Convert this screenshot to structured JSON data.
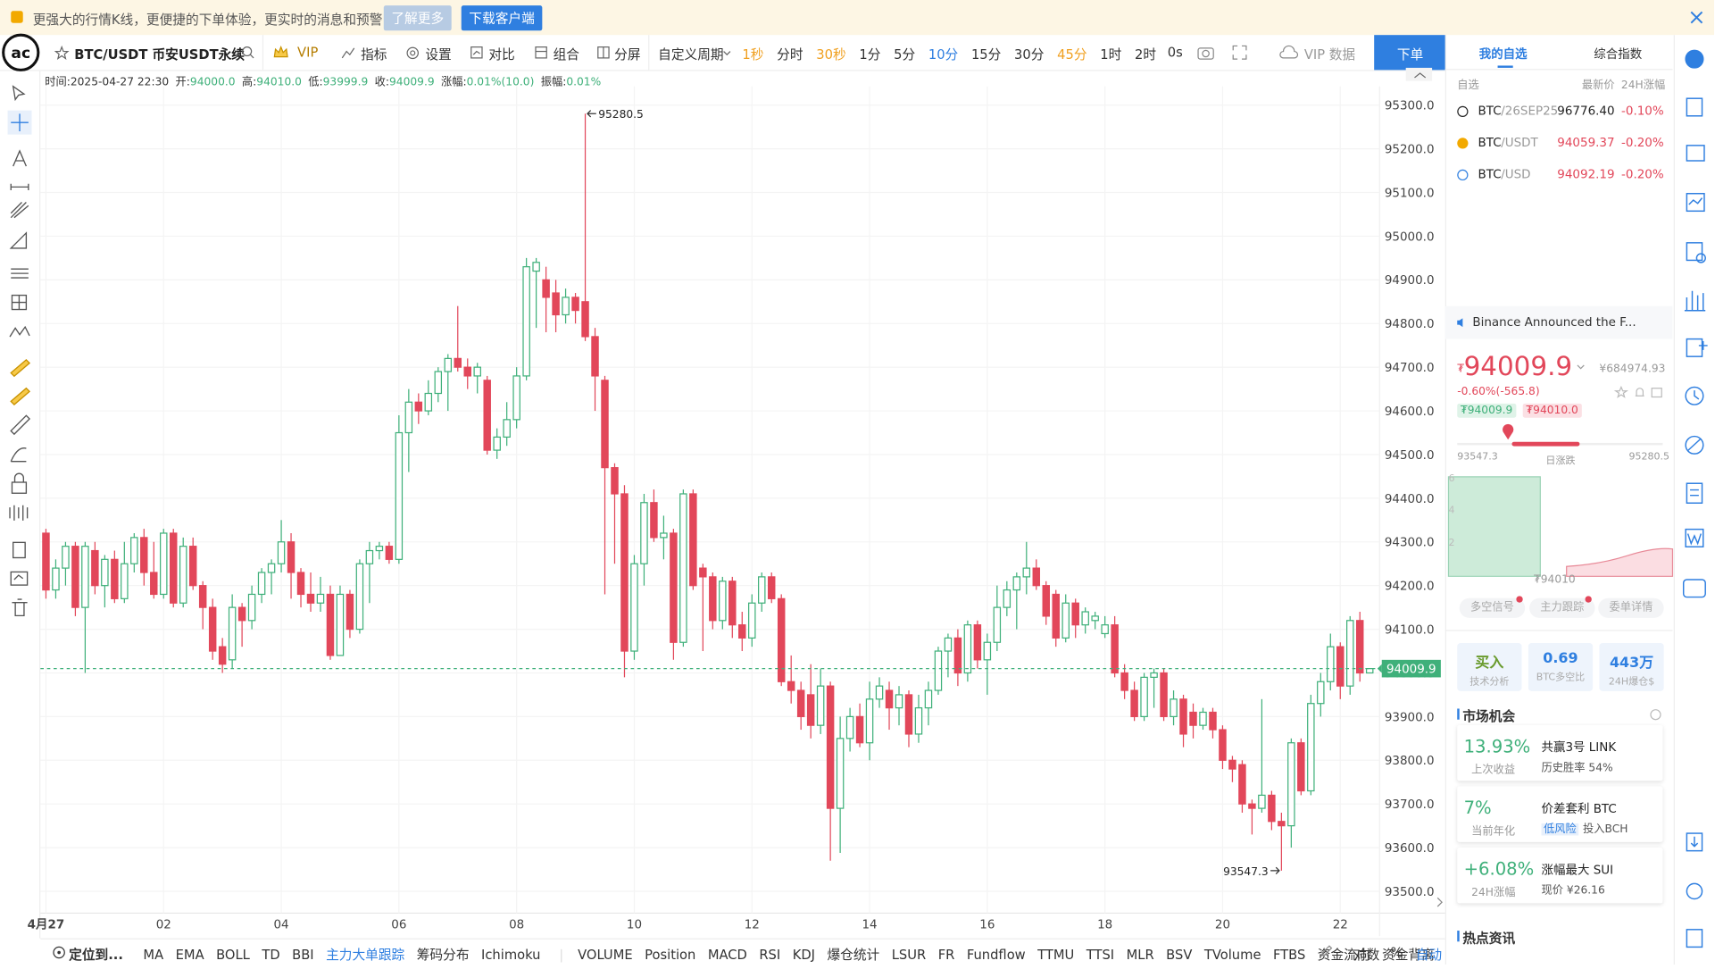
{
  "banner": {
    "text": "更强大的行情K线，更便捷的下单体验，更实时的消息和预警",
    "learn_more": "了解更多",
    "download": "下载客户端"
  },
  "toolbar": {
    "symbol": "BTC/USDT 币安USDT永续",
    "vip": "VIP",
    "indicators": "指标",
    "settings": "设置",
    "compare": "对比",
    "combo": "组合",
    "split": "分屏",
    "custom_period": "自定义周期",
    "periods": [
      {
        "label": "1秒",
        "style": "vip"
      },
      {
        "label": "分时",
        "style": "normal"
      },
      {
        "label": "30秒",
        "style": "vip"
      },
      {
        "label": "1分",
        "style": "normal"
      },
      {
        "label": "5分",
        "style": "normal"
      },
      {
        "label": "10分",
        "style": "active"
      },
      {
        "label": "15分",
        "style": "normal"
      },
      {
        "label": "30分",
        "style": "normal"
      },
      {
        "label": "45分",
        "style": "vip"
      },
      {
        "label": "1时",
        "style": "normal"
      },
      {
        "label": "2时",
        "style": "normal"
      }
    ],
    "countdown": "0s",
    "vip_data": "VIP 数据",
    "order": "下单"
  },
  "ohlc_bar": [
    {
      "label": "时间:",
      "value": "2025-04-27 22:30"
    },
    {
      "label": "开:",
      "value": "94000.0"
    },
    {
      "label": "高:",
      "value": "94010.0"
    },
    {
      "label": "低:",
      "value": "93999.9"
    },
    {
      "label": "收:",
      "value": "94009.9"
    },
    {
      "label": "涨幅:",
      "value": "0.01%(10.0)"
    },
    {
      "label": "振幅:",
      "value": "0.01%"
    }
  ],
  "chart_data": {
    "type": "candlestick",
    "up_color": "#3fb07a",
    "down_color": "#e2475a",
    "up_hollow": true,
    "grid": true,
    "xlim": [
      -0.56,
      136.01
    ],
    "ylim": [
      93450,
      95378
    ],
    "xticks": [
      {
        "value": 0,
        "label": "4月27"
      },
      {
        "value": 12,
        "label": "02"
      },
      {
        "value": 24,
        "label": "04"
      },
      {
        "value": 36,
        "label": "06"
      },
      {
        "value": 48,
        "label": "08"
      },
      {
        "value": 60,
        "label": "10"
      },
      {
        "value": 72,
        "label": "12"
      },
      {
        "value": 84,
        "label": "14"
      },
      {
        "value": 96,
        "label": "16"
      },
      {
        "value": 108,
        "label": "18"
      },
      {
        "value": 120,
        "label": "20"
      },
      {
        "value": 132,
        "label": "22"
      }
    ],
    "yticks": [
      {
        "value": 95300,
        "label": "95300.0"
      },
      {
        "value": 95200,
        "label": "95200.0"
      },
      {
        "value": 95100,
        "label": "95100.0"
      },
      {
        "value": 95000,
        "label": "95000.0"
      },
      {
        "value": 94900,
        "label": "94900.0"
      },
      {
        "value": 94800,
        "label": "94800.0"
      },
      {
        "value": 94700,
        "label": "94700.0"
      },
      {
        "value": 94600,
        "label": "94600.0"
      },
      {
        "value": 94500,
        "label": "94500.0"
      },
      {
        "value": 94400,
        "label": "94400.0"
      },
      {
        "value": 94300,
        "label": "94300.0"
      },
      {
        "value": 94200,
        "label": "94200.0"
      },
      {
        "value": 94100,
        "label": "94100.0"
      },
      {
        "value": 94000,
        "label": "94000.0"
      },
      {
        "value": 93900,
        "label": "93900.0"
      },
      {
        "value": 93800,
        "label": "93800.0"
      },
      {
        "value": 93700,
        "label": "93700.0"
      },
      {
        "value": 93600,
        "label": "93600.0"
      },
      {
        "value": 93500,
        "label": "93500.0"
      }
    ],
    "candles": [
      [
        94320,
        94330,
        94170,
        94190
      ],
      [
        94190,
        94260,
        94170,
        94240
      ],
      [
        94240,
        94300,
        94200,
        94290
      ],
      [
        94290,
        94300,
        94130,
        94150
      ],
      [
        94150,
        94300,
        94000,
        94290
      ],
      [
        94280,
        94300,
        94180,
        94200
      ],
      [
        94200,
        94270,
        94150,
        94260
      ],
      [
        94260,
        94280,
        94160,
        94170
      ],
      [
        94170,
        94300,
        94160,
        94250
      ],
      [
        94250,
        94320,
        94230,
        94310
      ],
      [
        94310,
        94330,
        94200,
        94230
      ],
      [
        94230,
        94300,
        94170,
        94180
      ],
      [
        94180,
        94330,
        94170,
        94320
      ],
      [
        94320,
        94330,
        94150,
        94160
      ],
      [
        94160,
        94310,
        94150,
        94290
      ],
      [
        94290,
        94310,
        94190,
        94200
      ],
      [
        94200,
        94210,
        94100,
        94150
      ],
      [
        94150,
        94170,
        94030,
        94050
      ],
      [
        94060,
        94080,
        94000,
        94020
      ],
      [
        94030,
        94180,
        94010,
        94150
      ],
      [
        94150,
        94160,
        94060,
        94120
      ],
      [
        94120,
        94200,
        94100,
        94180
      ],
      [
        94180,
        94240,
        94160,
        94230
      ],
      [
        94230,
        94260,
        94180,
        94250
      ],
      [
        94250,
        94350,
        94230,
        94300
      ],
      [
        94300,
        94320,
        94170,
        94230
      ],
      [
        94230,
        94240,
        94150,
        94180
      ],
      [
        94180,
        94230,
        94140,
        94160
      ],
      [
        94160,
        94220,
        94140,
        94180
      ],
      [
        94180,
        94200,
        94030,
        94040
      ],
      [
        94040,
        94200,
        94040,
        94180
      ],
      [
        94180,
        94190,
        94080,
        94100
      ],
      [
        94100,
        94260,
        94090,
        94250
      ],
      [
        94250,
        94300,
        94160,
        94280
      ],
      [
        94280,
        94300,
        94260,
        94290
      ],
      [
        94290,
        94300,
        94250,
        94260
      ],
      [
        94260,
        94590,
        94250,
        94550
      ],
      [
        94550,
        94650,
        94460,
        94620
      ],
      [
        94620,
        94640,
        94570,
        94600
      ],
      [
        94600,
        94670,
        94590,
        94640
      ],
      [
        94640,
        94700,
        94620,
        94690
      ],
      [
        94690,
        94730,
        94600,
        94720
      ],
      [
        94720,
        94840,
        94690,
        94700
      ],
      [
        94700,
        94720,
        94650,
        94680
      ],
      [
        94680,
        94710,
        94640,
        94700
      ],
      [
        94670,
        94680,
        94500,
        94510
      ],
      [
        94510,
        94560,
        94490,
        94540
      ],
      [
        94540,
        94620,
        94520,
        94580
      ],
      [
        94580,
        94700,
        94560,
        94680
      ],
      [
        94680,
        94950,
        94670,
        94930
      ],
      [
        94920,
        94950,
        94790,
        94940
      ],
      [
        94900,
        94930,
        94780,
        94860
      ],
      [
        94870,
        94900,
        94780,
        94820
      ],
      [
        94820,
        94880,
        94800,
        94860
      ],
      [
        94860,
        94870,
        94800,
        94830
      ],
      [
        94850,
        95280.5,
        94760,
        94770
      ],
      [
        94770,
        94790,
        94600,
        94680
      ],
      [
        94670,
        94680,
        94180,
        94470
      ],
      [
        94470,
        94480,
        94250,
        94410
      ],
      [
        94410,
        94430,
        93990,
        94050
      ],
      [
        94050,
        94270,
        94030,
        94250
      ],
      [
        94250,
        94410,
        94200,
        94390
      ],
      [
        94390,
        94420,
        94300,
        94310
      ],
      [
        94310,
        94360,
        94260,
        94320
      ],
      [
        94320,
        94330,
        94030,
        94070
      ],
      [
        94070,
        94420,
        94060,
        94410
      ],
      [
        94410,
        94420,
        94190,
        94200
      ],
      [
        94240,
        94250,
        94050,
        94220
      ],
      [
        94220,
        94230,
        94100,
        94120
      ],
      [
        94120,
        94220,
        94100,
        94210
      ],
      [
        94210,
        94220,
        94080,
        94110
      ],
      [
        94110,
        94140,
        94050,
        94080
      ],
      [
        94080,
        94180,
        94060,
        94160
      ],
      [
        94160,
        94230,
        94140,
        94220
      ],
      [
        94220,
        94230,
        94160,
        94170
      ],
      [
        94170,
        94180,
        93970,
        93980
      ],
      [
        93980,
        94040,
        93930,
        93960
      ],
      [
        93960,
        93980,
        93870,
        93900
      ],
      [
        93950,
        94020,
        93850,
        93880
      ],
      [
        93880,
        94010,
        93860,
        93970
      ],
      [
        93970,
        93980,
        93570,
        93690
      ],
      [
        93690,
        93900,
        93588,
        93850
      ],
      [
        93850,
        93920,
        93820,
        93900
      ],
      [
        93900,
        93930,
        93830,
        93840
      ],
      [
        93840,
        93980,
        93800,
        93940
      ],
      [
        93940,
        93990,
        93920,
        93970
      ],
      [
        93960,
        93980,
        93870,
        93920
      ],
      [
        93920,
        93970,
        93880,
        93950
      ],
      [
        93950,
        93960,
        93830,
        93860
      ],
      [
        93860,
        93950,
        93840,
        93920
      ],
      [
        93920,
        93980,
        93880,
        93960
      ],
      [
        93960,
        94060,
        93950,
        94050
      ],
      [
        94050,
        94090,
        93990,
        94080
      ],
      [
        94080,
        94100,
        93970,
        94000
      ],
      [
        94000,
        94120,
        93980,
        94110
      ],
      [
        94110,
        94120,
        94010,
        94030
      ],
      [
        94030,
        94090,
        93950,
        94070
      ],
      [
        94070,
        94200,
        94050,
        94150
      ],
      [
        94150,
        94210,
        94130,
        94190
      ],
      [
        94190,
        94230,
        94100,
        94220
      ],
      [
        94220,
        94300,
        94180,
        94240
      ],
      [
        94240,
        94260,
        94190,
        94200
      ],
      [
        94200,
        94210,
        94110,
        94130
      ],
      [
        94180,
        94190,
        94060,
        94080
      ],
      [
        94080,
        94180,
        94070,
        94160
      ],
      [
        94160,
        94170,
        94080,
        94110
      ],
      [
        94110,
        94150,
        94090,
        94140
      ],
      [
        94120,
        94140,
        94100,
        94130
      ],
      [
        94090,
        94130,
        94080,
        94110
      ],
      [
        94110,
        94130,
        93990,
        94000
      ],
      [
        94000,
        94020,
        93940,
        93960
      ],
      [
        93960,
        93980,
        93890,
        93900
      ],
      [
        93900,
        94000,
        93890,
        93990
      ],
      [
        93990,
        94010,
        93920,
        94000
      ],
      [
        94000,
        94010,
        93890,
        93900
      ],
      [
        93900,
        93960,
        93880,
        93940
      ],
      [
        93940,
        93950,
        93830,
        93860
      ],
      [
        93910,
        93930,
        93850,
        93880
      ],
      [
        93880,
        93920,
        93870,
        93910
      ],
      [
        93910,
        93920,
        93850,
        93870
      ],
      [
        93870,
        93880,
        93780,
        93800
      ],
      [
        93800,
        93810,
        93750,
        93780
      ],
      [
        93790,
        93800,
        93680,
        93700
      ],
      [
        93700,
        93710,
        93630,
        93690
      ],
      [
        93690,
        93940,
        93680,
        93720
      ],
      [
        93720,
        93730,
        93640,
        93660
      ],
      [
        93660,
        93680,
        93547.3,
        93650
      ],
      [
        93650,
        93850,
        93600,
        93840
      ],
      [
        93840,
        93850,
        93720,
        93730
      ],
      [
        93730,
        93950,
        93720,
        93930
      ],
      [
        93930,
        94000,
        93900,
        93980
      ],
      [
        93980,
        94090,
        93960,
        94060
      ],
      [
        94060,
        94070,
        93940,
        93970
      ],
      [
        93970,
        94130,
        93950,
        94120
      ],
      [
        94120,
        94140,
        93980,
        94000
      ],
      [
        94000,
        94010,
        93999.9,
        94009.9
      ]
    ]
  },
  "indicator_bar": {
    "locate": "定位到...",
    "main_indicators": [
      {
        "label": "MA",
        "active": false
      },
      {
        "label": "EMA",
        "active": false
      },
      {
        "label": "BOLL",
        "active": false
      },
      {
        "label": "TD",
        "active": false
      },
      {
        "label": "BBI",
        "active": false
      },
      {
        "label": "主力大单跟踪",
        "active": true
      },
      {
        "label": "筹码分布",
        "active": false
      },
      {
        "label": "Ichimoku",
        "active": false
      }
    ],
    "sub_indicators": [
      "VOLUME",
      "Position",
      "MACD",
      "RSI",
      "KDJ",
      "爆仓统计",
      "LSUR",
      "FR",
      "Fundflow",
      "TTMU",
      "TTSI",
      "MLR",
      "BSV",
      "TVolume",
      "FTBS",
      "资金流向",
      "资金背离"
    ],
    "log": "对数",
    "percent": "%",
    "auto": "自动"
  },
  "right_panel": {
    "tabs": [
      "我的自选",
      "综合指数"
    ],
    "watchlist_header": {
      "group": "自选",
      "price": "最新价",
      "change": "24H涨幅"
    },
    "watchlist": [
      {
        "base": "BTC",
        "quote": "/26SEP25",
        "price": "96776.40",
        "change": "-0.10%"
      },
      {
        "base": "BTC",
        "quote": "/USDT",
        "price": "94059.37",
        "change": "-0.20%"
      },
      {
        "base": "BTC",
        "quote": "/USD",
        "price": "94092.19",
        "change": "-0.20%"
      }
    ],
    "news": "Binance Announced the F...",
    "price": {
      "currency": "₮",
      "last": "94009.9",
      "cny": "¥684974.93",
      "change": "-0.60%(-565.8)",
      "bid": "₮94009.9",
      "ask": "₮94010.0"
    },
    "day_range": {
      "low": "93547.3",
      "label": "日涨跌",
      "high": "95280.5"
    },
    "depth": {
      "ticks": [
        "6",
        "4",
        "2"
      ],
      "mid": "₮94010"
    },
    "buttons": [
      "多空信号",
      "主力跟踪",
      "委单详情"
    ],
    "stats": [
      {
        "top": "买入",
        "bottom": "技术分析"
      },
      {
        "top": "0.69",
        "bottom": "BTC多空比"
      },
      {
        "top": "443万",
        "bottom": "24H爆仓$"
      }
    ],
    "opportunities_title": "市场机会",
    "opportunities": [
      {
        "value": "13.93%",
        "caption": "上次收益",
        "title": "共赢3号 LINK",
        "tag": "",
        "detail": "历史胜率 54%"
      },
      {
        "value": "7%",
        "caption": "当前年化",
        "title": "价差套利 BTC",
        "tag": "低风险",
        "detail": "投入BCH"
      },
      {
        "value": "+6.08%",
        "caption": "24H涨幅",
        "title": "涨幅最大 SUI",
        "tag": "",
        "detail": "现价 ¥26.16"
      }
    ],
    "hot_news_title": "热点资讯"
  }
}
